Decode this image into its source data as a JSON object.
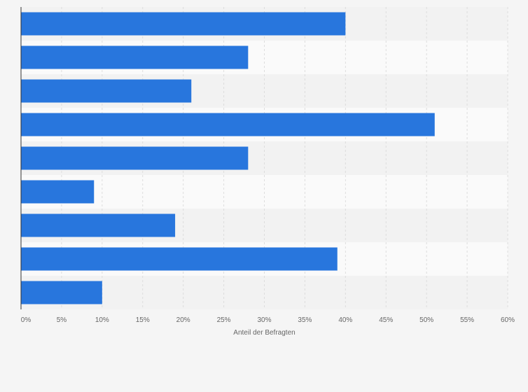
{
  "chart_data": {
    "type": "bar",
    "orientation": "horizontal",
    "title": "",
    "xlabel": "Anteil der Befragten",
    "ylabel": "",
    "xlim": [
      0,
      60
    ],
    "x_ticks": [
      "0%",
      "5%",
      "10%",
      "15%",
      "20%",
      "25%",
      "30%",
      "35%",
      "40%",
      "45%",
      "50%",
      "55%",
      "60%"
    ],
    "categories": [
      "",
      "",
      "",
      "",
      "",
      "",
      "",
      "",
      ""
    ],
    "values": [
      40,
      28,
      21,
      51,
      28,
      9,
      19,
      39,
      10
    ],
    "unit": "%",
    "grid": true,
    "legend": "none",
    "colors": {
      "bar": "#2876dd",
      "background": "#f5f5f5",
      "band_light": "#fafafa",
      "band_dark": "#f2f2f2",
      "grid": "#dddddd",
      "axis": "#333333",
      "text": "#666666"
    }
  }
}
